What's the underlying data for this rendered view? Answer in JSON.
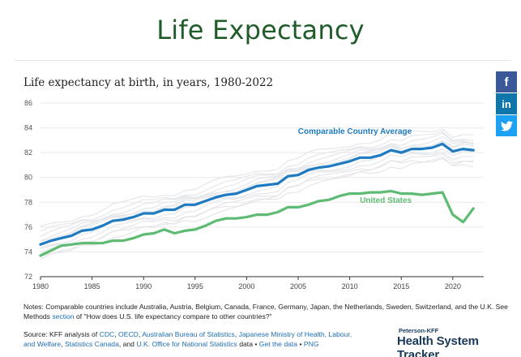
{
  "header": {
    "title": "Life Expectancy"
  },
  "chart_data": {
    "type": "line",
    "title": "Life expectancy at birth, in years, 1980-2022",
    "xlabel": "",
    "ylabel": "",
    "xlim": [
      1980,
      2023
    ],
    "ylim": [
      72,
      86
    ],
    "yticks": [
      72,
      74,
      76,
      78,
      80,
      82,
      84,
      86
    ],
    "xticks": [
      1980,
      1985,
      1990,
      1995,
      2000,
      2005,
      2010,
      2015,
      2020
    ],
    "grid": true,
    "legend": "inline labels",
    "x": [
      1980,
      1981,
      1982,
      1983,
      1984,
      1985,
      1986,
      1987,
      1988,
      1989,
      1990,
      1991,
      1992,
      1993,
      1994,
      1995,
      1996,
      1997,
      1998,
      1999,
      2000,
      2001,
      2002,
      2003,
      2004,
      2005,
      2006,
      2007,
      2008,
      2009,
      2010,
      2011,
      2012,
      2013,
      2014,
      2015,
      2016,
      2017,
      2018,
      2019,
      2020,
      2021,
      2022
    ],
    "series": [
      {
        "name": "Comparable Country Average",
        "color": "#1f7bc1",
        "values": [
          74.6,
          74.9,
          75.1,
          75.3,
          75.7,
          75.8,
          76.1,
          76.5,
          76.6,
          76.8,
          77.1,
          77.1,
          77.4,
          77.4,
          77.8,
          77.8,
          78.1,
          78.4,
          78.6,
          78.7,
          79.0,
          79.3,
          79.4,
          79.5,
          80.1,
          80.2,
          80.6,
          80.8,
          80.9,
          81.1,
          81.3,
          81.6,
          81.6,
          81.8,
          82.2,
          82.0,
          82.3,
          82.3,
          82.4,
          82.7,
          82.1,
          82.3,
          82.2
        ]
      },
      {
        "name": "United States",
        "color": "#5dbb73",
        "values": [
          73.7,
          74.1,
          74.5,
          74.6,
          74.7,
          74.7,
          74.7,
          74.9,
          74.9,
          75.1,
          75.4,
          75.5,
          75.8,
          75.5,
          75.7,
          75.8,
          76.1,
          76.5,
          76.7,
          76.7,
          76.8,
          77.0,
          77.0,
          77.2,
          77.6,
          77.6,
          77.8,
          78.1,
          78.2,
          78.5,
          78.7,
          78.7,
          78.8,
          78.8,
          78.9,
          78.7,
          78.7,
          78.6,
          78.7,
          78.8,
          77.0,
          76.4,
          77.5
        ]
      }
    ],
    "background_series_color": "#e4e6ea"
  },
  "notes": {
    "prefix": "Notes: Comparable countries include Australia, Austria, Belgium, Canada, France, Germany, Japan, the Netherlands, Sweden, Switzerland, and the U.K. See Methods ",
    "link": "section",
    "suffix": " of \"How does U.S. life expectancy compare to other countries?\""
  },
  "source": {
    "prefix": "Source: KFF analysis of ",
    "links": [
      "CDC",
      "OECD",
      "Australian Bureau of Statistics",
      "Japanese Ministry of Health, Labour, and Welfare",
      "Statistics Canada",
      "U.K. Office for National Statistics"
    ],
    "data_text": " data • ",
    "get_data": "Get the data",
    "png": "PNG"
  },
  "brand": {
    "small": "Peterson-KFF",
    "big": "Health System Tracker"
  },
  "social": {
    "facebook": "f",
    "linkedin": "in",
    "twitter": "🐦"
  }
}
